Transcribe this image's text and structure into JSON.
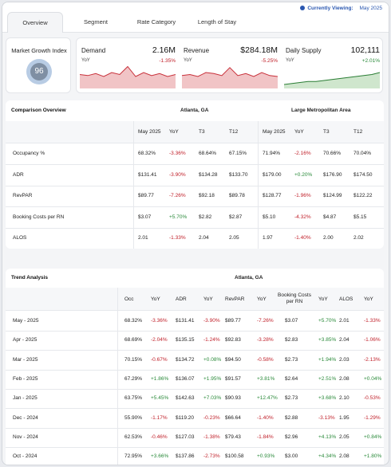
{
  "tabs": [
    {
      "label": "Overview",
      "active": true
    },
    {
      "label": "Segment",
      "active": false
    },
    {
      "label": "Rate Category",
      "active": false
    },
    {
      "label": "Length of Stay",
      "active": false
    }
  ],
  "viewing": {
    "label": "Currently Viewing:",
    "value": "May 2025"
  },
  "market_growth": {
    "title": "Market Growth Index",
    "value": "96"
  },
  "kpis": [
    {
      "name": "Demand",
      "value": "2.16M",
      "yoy_label": "YoY",
      "yoy": "-1.35%",
      "trend": "neg",
      "spark": [
        14,
        13,
        15,
        12,
        16,
        14,
        22,
        12,
        16,
        13,
        15,
        12,
        14
      ]
    },
    {
      "name": "Revenue",
      "value": "$284.18M",
      "yoy_label": "YoY",
      "yoy": "-5.25%",
      "trend": "neg",
      "spark": [
        13,
        14,
        12,
        16,
        15,
        13,
        21,
        13,
        15,
        12,
        16,
        13,
        12
      ]
    },
    {
      "name": "Daily Supply",
      "value": "102,111",
      "yoy_label": "YoY",
      "yoy": "+2.01%",
      "trend": "pos",
      "spark": [
        4,
        5,
        6,
        7,
        7,
        8,
        9,
        10,
        11,
        12,
        13,
        14,
        16
      ]
    }
  ],
  "comparison": {
    "title": "Comparison Overview",
    "group1": "Atlanta, GA",
    "group2": "Large Metropolitan Area",
    "columns": [
      "May 2025",
      "YoY",
      "T3",
      "T12",
      "May 2025",
      "YoY",
      "T3",
      "T12"
    ],
    "rows": [
      {
        "label": "Occupancy %",
        "cells": [
          "68.32%",
          "-3.36%",
          "68.64%",
          "67.15%",
          "71.94%",
          "-2.16%",
          "70.66%",
          "70.04%"
        ]
      },
      {
        "label": "ADR",
        "cells": [
          "$131.41",
          "-3.90%",
          "$134.28",
          "$133.70",
          "$179.00",
          "+0.20%",
          "$176.90",
          "$174.50"
        ]
      },
      {
        "label": "RevPAR",
        "cells": [
          "$89.77",
          "-7.26%",
          "$92.18",
          "$89.78",
          "$128.77",
          "-1.96%",
          "$124.99",
          "$122.22"
        ]
      },
      {
        "label": "Booking Costs per RN",
        "cells": [
          "$3.07",
          "+5.70%",
          "$2.82",
          "$2.87",
          "$5.10",
          "-4.32%",
          "$4.87",
          "$5.15"
        ]
      },
      {
        "label": "ALOS",
        "cells": [
          "2.01",
          "-1.33%",
          "2.04",
          "2.05",
          "1.97",
          "-1.40%",
          "2.00",
          "2.02"
        ]
      }
    ]
  },
  "trend": {
    "title": "Trend Analysis",
    "group": "Atlanta, GA",
    "columns": [
      "Occ",
      "YoY",
      "ADR",
      "YoY",
      "RevPAR",
      "YoY",
      "Booking Costs per RN",
      "YoY",
      "ALOS",
      "YoY"
    ],
    "rows": [
      {
        "label": "May - 2025",
        "cells": [
          "68.32%",
          "-3.36%",
          "$131.41",
          "-3.90%",
          "$89.77",
          "-7.26%",
          "$3.07",
          "+5.70%",
          "2.01",
          "-1.33%"
        ]
      },
      {
        "label": "Apr - 2025",
        "cells": [
          "68.69%",
          "-2.04%",
          "$135.15",
          "-1.24%",
          "$92.83",
          "-3.28%",
          "$2.83",
          "+3.85%",
          "2.04",
          "-1.06%"
        ]
      },
      {
        "label": "Mar - 2025",
        "cells": [
          "70.15%",
          "-0.67%",
          "$134.72",
          "+0.08%",
          "$94.50",
          "-0.58%",
          "$2.73",
          "+1.94%",
          "2.03",
          "-2.13%"
        ]
      },
      {
        "label": "Feb - 2025",
        "cells": [
          "67.29%",
          "+1.86%",
          "$136.07",
          "+1.95%",
          "$91.57",
          "+3.81%",
          "$2.64",
          "+2.51%",
          "2.08",
          "+0.04%"
        ]
      },
      {
        "label": "Jan - 2025",
        "cells": [
          "63.75%",
          "+5.45%",
          "$142.63",
          "+7.03%",
          "$90.93",
          "+12.47%",
          "$2.73",
          "+3.68%",
          "2.10",
          "-0.53%"
        ]
      },
      {
        "label": "Dec - 2024",
        "cells": [
          "55.90%",
          "-1.17%",
          "$119.20",
          "-0.23%",
          "$66.64",
          "-1.40%",
          "$2.88",
          "-3.13%",
          "1.95",
          "-1.29%"
        ]
      },
      {
        "label": "Nov - 2024",
        "cells": [
          "62.53%",
          "-0.46%",
          "$127.03",
          "-1.38%",
          "$79.43",
          "-1.84%",
          "$2.96",
          "+4.13%",
          "2.05",
          "+0.84%"
        ]
      },
      {
        "label": "Oct - 2024",
        "cells": [
          "72.95%",
          "+3.66%",
          "$137.86",
          "-2.73%",
          "$100.58",
          "+0.93%",
          "$3.00",
          "+4.34%",
          "2.08",
          "+1.80%"
        ]
      }
    ]
  }
}
